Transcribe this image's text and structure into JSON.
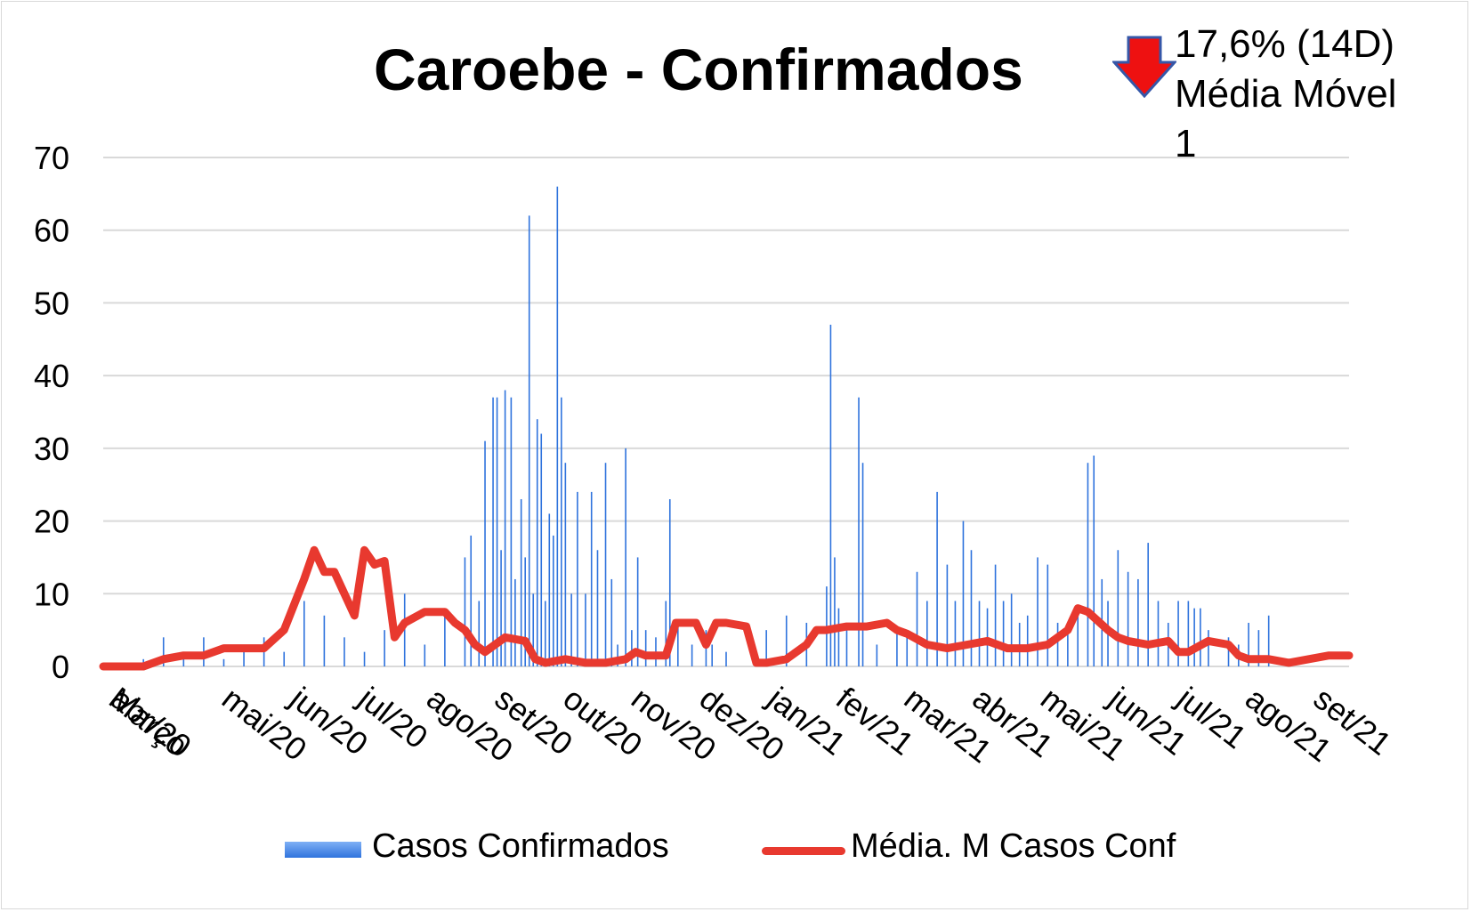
{
  "chart_data": {
    "type": "bar+line",
    "title": "Caroebe - Confirmados",
    "annotation": {
      "icon": "down-arrow-icon",
      "line1": "17,6% (14D)",
      "line2": "Média Móvel",
      "line3": "1"
    },
    "ylim": [
      0,
      70
    ],
    "yticks": [
      "0",
      "10",
      "20",
      "30",
      "40",
      "50",
      "60",
      "70"
    ],
    "xtick_labels": [
      "Março",
      "abr/20",
      "mai/20",
      "jun/20",
      "jul/20",
      "ago/20",
      "set/20",
      "out/20",
      "nov/20",
      "dez/20",
      "jan/21",
      "fev/21",
      "mar/21",
      "abr/21",
      "mai/21",
      "jun/21",
      "jul/21",
      "ago/21",
      "set/21"
    ],
    "grid": true,
    "legend_placement": "bottom",
    "series": [
      {
        "name": "Casos Confirmados",
        "kind": "bar",
        "color": "#2f73dd",
        "points": [
          [
            2,
            1
          ],
          [
            3,
            4
          ],
          [
            4,
            2
          ],
          [
            5,
            4
          ],
          [
            6,
            1
          ],
          [
            7,
            3
          ],
          [
            8,
            4
          ],
          [
            9,
            2
          ],
          [
            10,
            9
          ],
          [
            11,
            7
          ],
          [
            12,
            4
          ],
          [
            13,
            2
          ],
          [
            14,
            5
          ],
          [
            15,
            10
          ],
          [
            16,
            3
          ],
          [
            17,
            7
          ],
          [
            18,
            15
          ],
          [
            18.3,
            18
          ],
          [
            18.7,
            9
          ],
          [
            19,
            31
          ],
          [
            19.4,
            37
          ],
          [
            19.6,
            37
          ],
          [
            19.8,
            16
          ],
          [
            20,
            38
          ],
          [
            20.3,
            37
          ],
          [
            20.5,
            12
          ],
          [
            20.8,
            23
          ],
          [
            21,
            15
          ],
          [
            21.2,
            62
          ],
          [
            21.4,
            10
          ],
          [
            21.6,
            34
          ],
          [
            21.8,
            32
          ],
          [
            22,
            9
          ],
          [
            22.2,
            21
          ],
          [
            22.4,
            18
          ],
          [
            22.6,
            66
          ],
          [
            22.8,
            37
          ],
          [
            23,
            28
          ],
          [
            23.3,
            10
          ],
          [
            23.6,
            24
          ],
          [
            24,
            10
          ],
          [
            24.3,
            24
          ],
          [
            24.6,
            16
          ],
          [
            25,
            28
          ],
          [
            25.3,
            12
          ],
          [
            25.6,
            3
          ],
          [
            26,
            30
          ],
          [
            26.3,
            5
          ],
          [
            26.6,
            15
          ],
          [
            27,
            5
          ],
          [
            27.5,
            4
          ],
          [
            28,
            9
          ],
          [
            28.2,
            23
          ],
          [
            28.6,
            6
          ],
          [
            29.3,
            3
          ],
          [
            30,
            5
          ],
          [
            30.3,
            3
          ],
          [
            31,
            2
          ],
          [
            33,
            5
          ],
          [
            34,
            7
          ],
          [
            35,
            6
          ],
          [
            36,
            11
          ],
          [
            36.2,
            47
          ],
          [
            36.4,
            15
          ],
          [
            36.6,
            8
          ],
          [
            37,
            5
          ],
          [
            37.6,
            37
          ],
          [
            37.8,
            28
          ],
          [
            38.5,
            3
          ],
          [
            39.5,
            5
          ],
          [
            40,
            5
          ],
          [
            40.5,
            13
          ],
          [
            41,
            9
          ],
          [
            41.5,
            24
          ],
          [
            42,
            14
          ],
          [
            42.4,
            9
          ],
          [
            42.8,
            20
          ],
          [
            43.2,
            16
          ],
          [
            43.6,
            9
          ],
          [
            44,
            8
          ],
          [
            44.4,
            14
          ],
          [
            44.8,
            9
          ],
          [
            45.2,
            10
          ],
          [
            45.6,
            6
          ],
          [
            46,
            7
          ],
          [
            46.5,
            15
          ],
          [
            47,
            14
          ],
          [
            47.5,
            6
          ],
          [
            48,
            6
          ],
          [
            48.5,
            7
          ],
          [
            49,
            28
          ],
          [
            49.3,
            29
          ],
          [
            49.7,
            12
          ],
          [
            50,
            9
          ],
          [
            50.5,
            16
          ],
          [
            51,
            13
          ],
          [
            51.5,
            12
          ],
          [
            52,
            17
          ],
          [
            52.5,
            9
          ],
          [
            53,
            6
          ],
          [
            53.5,
            9
          ],
          [
            54,
            9
          ],
          [
            54.3,
            8
          ],
          [
            54.6,
            8
          ],
          [
            55,
            5
          ],
          [
            56,
            4
          ],
          [
            56.5,
            3
          ],
          [
            57,
            6
          ],
          [
            57.5,
            5
          ],
          [
            58,
            7
          ]
        ]
      },
      {
        "name": "Média. M Casos Conf",
        "kind": "line",
        "color": "#e8392f",
        "points": [
          [
            0,
            0
          ],
          [
            2,
            0
          ],
          [
            3,
            1
          ],
          [
            4,
            1.5
          ],
          [
            5,
            1.5
          ],
          [
            6,
            2.5
          ],
          [
            7,
            2.5
          ],
          [
            8,
            2.5
          ],
          [
            9,
            5
          ],
          [
            10,
            12
          ],
          [
            10.5,
            16
          ],
          [
            11,
            13
          ],
          [
            11.5,
            13
          ],
          [
            12,
            10
          ],
          [
            12.5,
            7
          ],
          [
            13,
            16
          ],
          [
            13.5,
            14
          ],
          [
            14,
            14.5
          ],
          [
            14.5,
            4
          ],
          [
            15,
            6
          ],
          [
            16,
            7.5
          ],
          [
            17,
            7.5
          ],
          [
            17.5,
            6
          ],
          [
            18,
            5
          ],
          [
            18.5,
            3
          ],
          [
            19,
            2
          ],
          [
            20,
            4
          ],
          [
            21,
            3.5
          ],
          [
            21.5,
            1
          ],
          [
            22,
            0.5
          ],
          [
            23,
            1
          ],
          [
            24,
            0.5
          ],
          [
            25,
            0.5
          ],
          [
            26,
            1
          ],
          [
            26.5,
            2
          ],
          [
            27,
            1.5
          ],
          [
            28,
            1.5
          ],
          [
            28.5,
            6
          ],
          [
            29,
            6
          ],
          [
            29.5,
            6
          ],
          [
            30,
            3
          ],
          [
            30.5,
            6
          ],
          [
            31,
            6
          ],
          [
            32,
            5.5
          ],
          [
            32.5,
            0.5
          ],
          [
            33,
            0.5
          ],
          [
            34,
            1
          ],
          [
            35,
            3
          ],
          [
            35.5,
            5
          ],
          [
            36,
            5
          ],
          [
            37,
            5.5
          ],
          [
            38,
            5.5
          ],
          [
            39,
            6
          ],
          [
            39.5,
            5
          ],
          [
            40,
            4.5
          ],
          [
            41,
            3
          ],
          [
            42,
            2.5
          ],
          [
            43,
            3
          ],
          [
            44,
            3.5
          ],
          [
            45,
            2.5
          ],
          [
            46,
            2.5
          ],
          [
            47,
            3
          ],
          [
            48,
            5
          ],
          [
            48.5,
            8
          ],
          [
            49,
            7.5
          ],
          [
            50,
            5
          ],
          [
            50.5,
            4
          ],
          [
            51,
            3.5
          ],
          [
            52,
            3
          ],
          [
            53,
            3.5
          ],
          [
            53.5,
            2
          ],
          [
            54,
            2
          ],
          [
            55,
            3.5
          ],
          [
            56,
            3
          ],
          [
            56.5,
            1.5
          ],
          [
            57,
            1
          ],
          [
            58,
            1
          ],
          [
            59,
            0.5
          ],
          [
            60,
            1
          ],
          [
            61,
            1.5
          ],
          [
            62,
            1.5
          ]
        ]
      }
    ]
  },
  "legend": {
    "bar_label": "Casos Confirmados",
    "line_label": "Média. M Casos Conf"
  }
}
